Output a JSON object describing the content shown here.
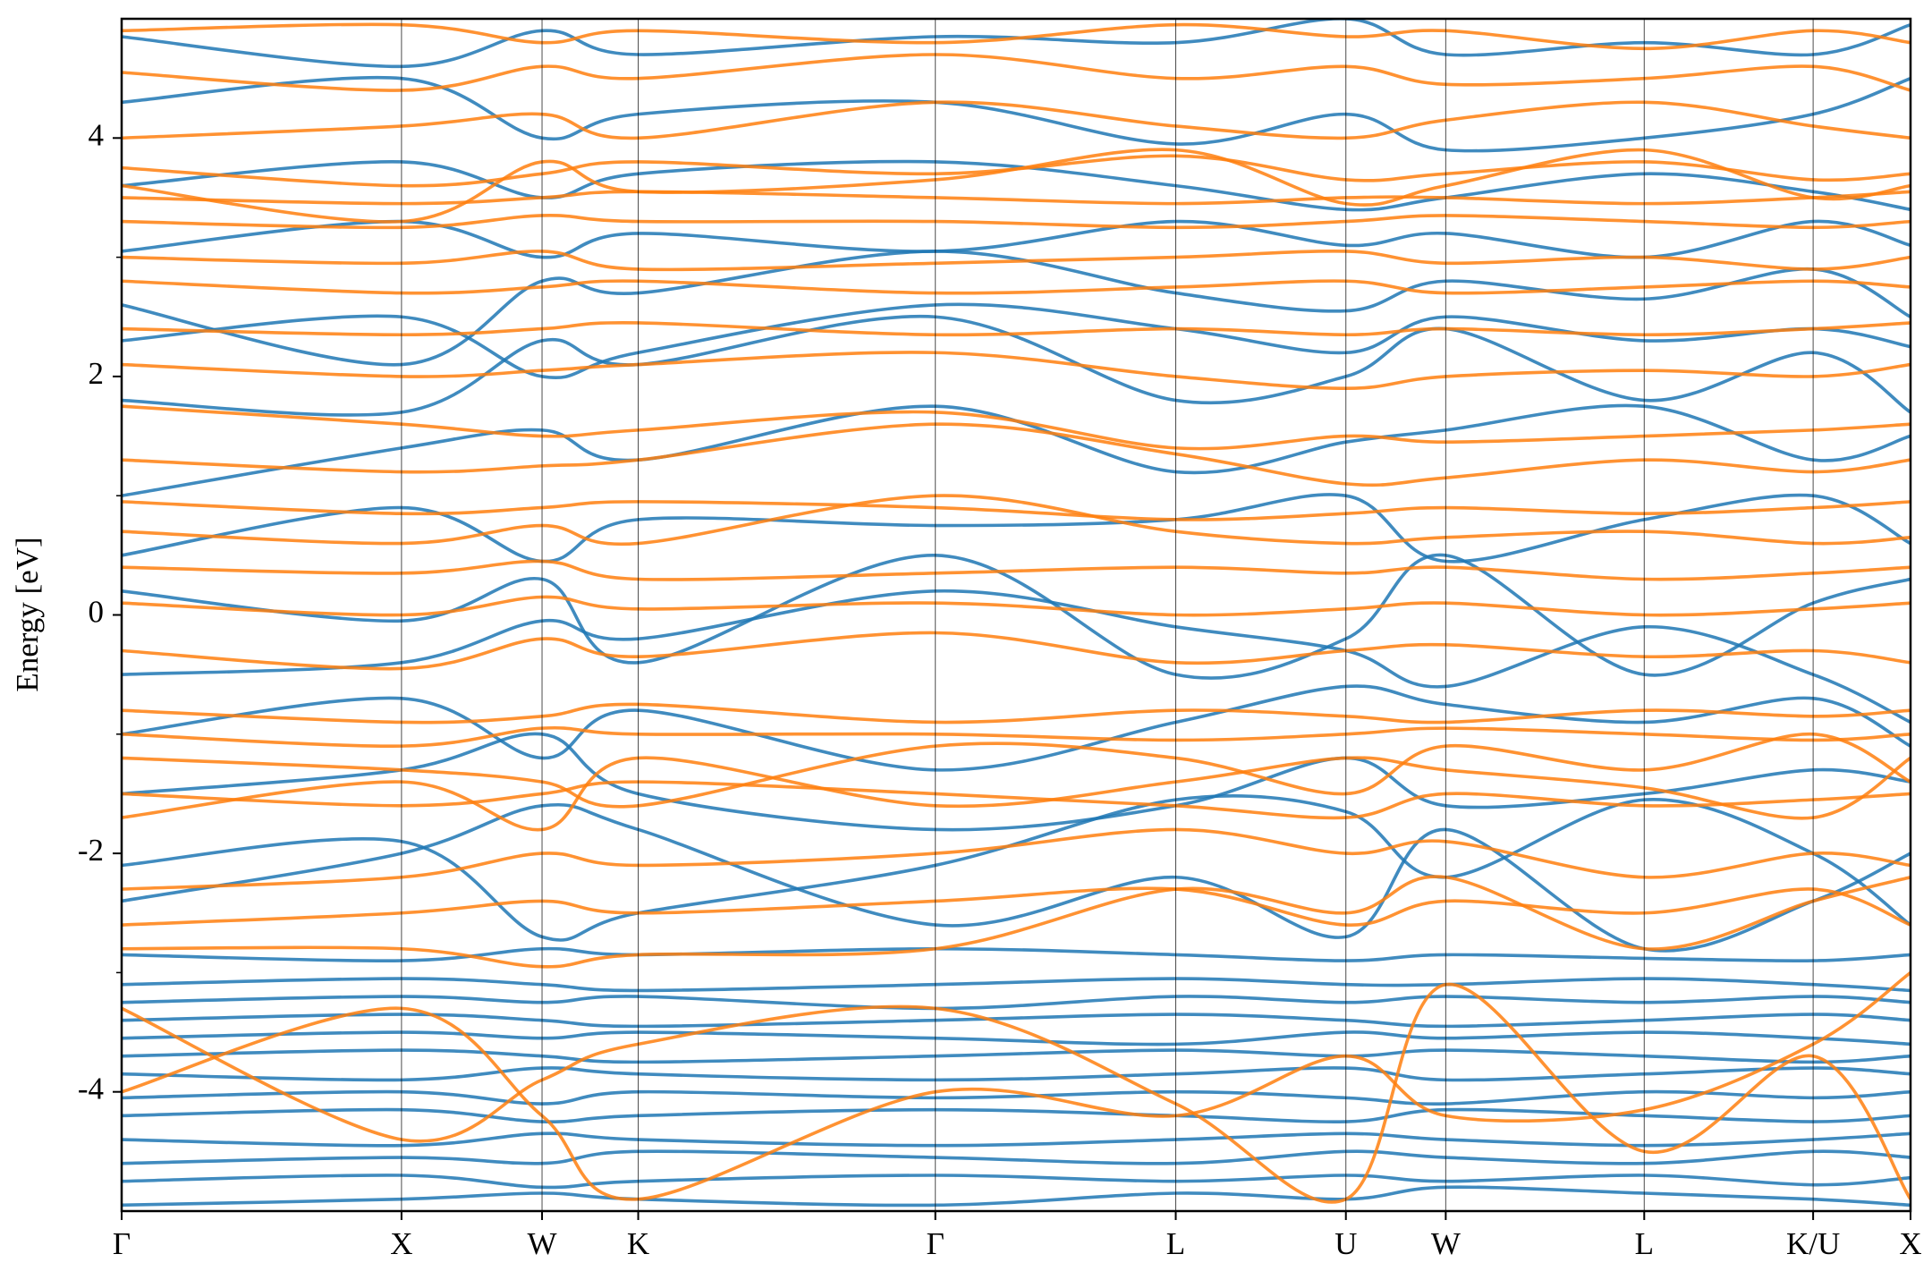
{
  "chart_data": {
    "type": "bands",
    "ylabel": "Energy [eV]",
    "x": [
      0,
      0.227,
      0.341,
      0.419,
      0.66,
      0.855,
      0.993,
      1.074,
      1.235,
      1.372,
      1.451
    ],
    "xlim": [
      0,
      1.451
    ],
    "xticks": [
      {
        "value": 0,
        "label": "Γ"
      },
      {
        "value": 0.227,
        "label": "X"
      },
      {
        "value": 0.341,
        "label": "W"
      },
      {
        "value": 0.419,
        "label": "K"
      },
      {
        "value": 0.66,
        "label": "Γ"
      },
      {
        "value": 0.855,
        "label": "L"
      },
      {
        "value": 0.993,
        "label": "U"
      },
      {
        "value": 1.074,
        "label": "W"
      },
      {
        "value": 1.235,
        "label": "L"
      },
      {
        "value": 1.372,
        "label": "K/U"
      },
      {
        "value": 1.451,
        "label": "X"
      }
    ],
    "ylim": [
      -5,
      5
    ],
    "yticks": [
      -4,
      -2,
      0,
      2,
      4
    ],
    "yminorticks": [
      -3,
      -1,
      1,
      3
    ],
    "series": [
      {
        "color": "#1f77b4",
        "bands": [
          [
            -4.95,
            -4.9,
            -4.85,
            -4.9,
            -4.95,
            -4.85,
            -4.9,
            -4.8,
            -4.85,
            -4.9,
            -4.95
          ],
          [
            -4.75,
            -4.7,
            -4.8,
            -4.75,
            -4.7,
            -4.75,
            -4.7,
            -4.75,
            -4.7,
            -4.78,
            -4.72
          ],
          [
            -4.6,
            -4.55,
            -4.6,
            -4.5,
            -4.55,
            -4.6,
            -4.5,
            -4.55,
            -4.6,
            -4.5,
            -4.55
          ],
          [
            -4.4,
            -4.45,
            -4.35,
            -4.4,
            -4.45,
            -4.4,
            -4.35,
            -4.4,
            -4.45,
            -4.4,
            -4.35
          ],
          [
            -4.2,
            -4.15,
            -4.25,
            -4.2,
            -4.15,
            -4.2,
            -4.25,
            -4.15,
            -4.2,
            -4.25,
            -4.2
          ],
          [
            -4.05,
            -4.0,
            -4.1,
            -4.0,
            -4.05,
            -4.0,
            -4.05,
            -4.1,
            -4.0,
            -4.05,
            -4.0
          ],
          [
            -3.85,
            -3.9,
            -3.8,
            -3.85,
            -3.9,
            -3.85,
            -3.8,
            -3.9,
            -3.85,
            -3.8,
            -3.85
          ],
          [
            -3.7,
            -3.65,
            -3.7,
            -3.75,
            -3.7,
            -3.65,
            -3.7,
            -3.65,
            -3.7,
            -3.75,
            -3.7
          ],
          [
            -3.55,
            -3.5,
            -3.55,
            -3.5,
            -3.55,
            -3.6,
            -3.5,
            -3.55,
            -3.5,
            -3.55,
            -3.6
          ],
          [
            -3.4,
            -3.35,
            -3.4,
            -3.45,
            -3.4,
            -3.35,
            -3.4,
            -3.45,
            -3.4,
            -3.35,
            -3.4
          ],
          [
            -3.25,
            -3.2,
            -3.25,
            -3.2,
            -3.3,
            -3.2,
            -3.25,
            -3.2,
            -3.25,
            -3.2,
            -3.25
          ],
          [
            -3.1,
            -3.05,
            -3.1,
            -3.15,
            -3.1,
            -3.05,
            -3.1,
            -3.1,
            -3.05,
            -3.1,
            -3.15
          ],
          [
            -2.85,
            -2.9,
            -2.8,
            -2.85,
            -2.8,
            -2.85,
            -2.9,
            -2.85,
            -2.88,
            -2.9,
            -2.85
          ],
          [
            -2.1,
            -1.9,
            -2.7,
            -2.5,
            -2.1,
            -1.55,
            -1.65,
            -2.2,
            -1.55,
            -2.0,
            -2.6
          ],
          [
            -2.4,
            -2.0,
            -1.6,
            -1.8,
            -2.6,
            -2.2,
            -2.7,
            -1.8,
            -2.8,
            -2.4,
            -2.0
          ],
          [
            -0.5,
            -0.4,
            -0.05,
            -0.2,
            0.2,
            -0.1,
            -0.3,
            -0.6,
            -0.1,
            -0.5,
            -0.9
          ],
          [
            0.2,
            -0.05,
            0.3,
            -0.4,
            0.5,
            -0.5,
            -0.2,
            0.5,
            -0.5,
            0.1,
            0.3
          ],
          [
            0.5,
            0.9,
            0.45,
            0.8,
            0.75,
            0.8,
            1.0,
            0.45,
            0.8,
            1.0,
            0.6
          ],
          [
            1.0,
            1.4,
            1.55,
            1.3,
            1.75,
            1.2,
            1.45,
            1.55,
            1.75,
            1.3,
            1.5
          ],
          [
            1.8,
            1.7,
            2.3,
            2.1,
            2.5,
            1.8,
            2.0,
            2.4,
            1.8,
            2.2,
            1.7
          ],
          [
            2.6,
            2.1,
            2.8,
            2.7,
            3.05,
            2.7,
            2.55,
            2.8,
            2.65,
            2.9,
            2.5
          ],
          [
            3.05,
            3.3,
            3.0,
            3.2,
            3.05,
            3.3,
            3.1,
            3.2,
            3.0,
            3.3,
            3.1
          ],
          [
            4.3,
            4.5,
            4.0,
            4.2,
            4.3,
            3.95,
            4.2,
            3.9,
            4.0,
            4.2,
            4.5
          ],
          [
            4.85,
            4.6,
            4.9,
            4.7,
            4.85,
            4.8,
            5.0,
            4.7,
            4.8,
            4.7,
            4.95
          ],
          [
            -1.0,
            -0.7,
            -1.2,
            -0.8,
            -1.3,
            -0.9,
            -0.6,
            -0.75,
            -0.9,
            -0.7,
            -1.1
          ],
          [
            -1.5,
            -1.3,
            -1.0,
            -1.5,
            -1.8,
            -1.6,
            -1.2,
            -1.6,
            -1.5,
            -1.3,
            -1.4
          ],
          [
            3.6,
            3.8,
            3.5,
            3.7,
            3.8,
            3.6,
            3.4,
            3.5,
            3.7,
            3.55,
            3.4
          ],
          [
            2.3,
            2.5,
            2.0,
            2.2,
            2.6,
            2.4,
            2.2,
            2.5,
            2.3,
            2.4,
            2.25
          ]
        ]
      },
      {
        "color": "#ff7f0e",
        "bands": [
          [
            -4.0,
            -3.3,
            -4.2,
            -4.9,
            -4.0,
            -4.2,
            -3.7,
            -4.2,
            -4.15,
            -3.6,
            -3.0
          ],
          [
            -3.3,
            -4.4,
            -3.9,
            -3.6,
            -3.3,
            -4.1,
            -4.9,
            -3.1,
            -4.5,
            -3.7,
            -4.9
          ],
          [
            -2.8,
            -2.8,
            -2.95,
            -2.85,
            -2.8,
            -2.3,
            -2.5,
            -2.2,
            -2.8,
            -2.4,
            -2.2
          ],
          [
            -2.3,
            -2.2,
            -2.0,
            -2.1,
            -2.0,
            -1.8,
            -2.0,
            -1.9,
            -2.2,
            -2.0,
            -2.1
          ],
          [
            -1.5,
            -1.6,
            -1.5,
            -1.4,
            -1.5,
            -1.6,
            -1.7,
            -1.5,
            -1.6,
            -1.55,
            -1.5
          ],
          [
            -1.0,
            -1.1,
            -0.95,
            -1.0,
            -1.0,
            -1.05,
            -1.0,
            -0.95,
            -1.0,
            -1.05,
            -1.0
          ],
          [
            -0.8,
            -0.9,
            -0.85,
            -0.75,
            -0.9,
            -0.8,
            -0.85,
            -0.9,
            -0.8,
            -0.85,
            -0.8
          ],
          [
            -0.3,
            -0.45,
            -0.2,
            -0.35,
            -0.15,
            -0.4,
            -0.3,
            -0.25,
            -0.35,
            -0.3,
            -0.4
          ],
          [
            0.1,
            0.0,
            0.15,
            0.05,
            0.1,
            0.0,
            0.05,
            0.1,
            0.0,
            0.05,
            0.1
          ],
          [
            0.4,
            0.35,
            0.45,
            0.3,
            0.35,
            0.4,
            0.35,
            0.4,
            0.3,
            0.35,
            0.4
          ],
          [
            0.95,
            0.85,
            0.9,
            0.95,
            0.9,
            0.8,
            0.85,
            0.9,
            0.85,
            0.9,
            0.95
          ],
          [
            1.3,
            1.2,
            1.25,
            1.3,
            1.6,
            1.35,
            1.1,
            1.15,
            1.3,
            1.2,
            1.3
          ],
          [
            1.75,
            1.6,
            1.5,
            1.55,
            1.7,
            1.4,
            1.5,
            1.45,
            1.5,
            1.55,
            1.6
          ],
          [
            2.1,
            2.0,
            2.05,
            2.1,
            2.2,
            2.0,
            1.9,
            2.0,
            2.05,
            2.0,
            2.1
          ],
          [
            2.4,
            2.35,
            2.4,
            2.45,
            2.35,
            2.4,
            2.35,
            2.4,
            2.35,
            2.4,
            2.45
          ],
          [
            2.8,
            2.7,
            2.75,
            2.8,
            2.7,
            2.75,
            2.8,
            2.7,
            2.75,
            2.8,
            2.75
          ],
          [
            3.0,
            2.95,
            3.05,
            2.9,
            2.95,
            3.0,
            3.05,
            2.95,
            3.0,
            2.9,
            3.0
          ],
          [
            3.3,
            3.25,
            3.35,
            3.3,
            3.3,
            3.25,
            3.3,
            3.35,
            3.3,
            3.25,
            3.3
          ],
          [
            3.5,
            3.45,
            3.5,
            3.55,
            3.5,
            3.45,
            3.5,
            3.5,
            3.45,
            3.5,
            3.55
          ],
          [
            3.75,
            3.6,
            3.7,
            3.8,
            3.7,
            3.85,
            3.65,
            3.7,
            3.8,
            3.65,
            3.7
          ],
          [
            4.0,
            4.1,
            4.2,
            4.0,
            4.3,
            4.1,
            4.0,
            4.15,
            4.3,
            4.1,
            4.0
          ],
          [
            4.55,
            4.4,
            4.6,
            4.5,
            4.7,
            4.5,
            4.6,
            4.45,
            4.5,
            4.6,
            4.4
          ],
          [
            4.9,
            4.95,
            4.8,
            4.9,
            4.8,
            4.95,
            4.85,
            4.9,
            4.75,
            4.9,
            4.8
          ],
          [
            -1.7,
            -1.4,
            -1.8,
            -1.2,
            -1.6,
            -1.4,
            -1.2,
            -1.3,
            -1.45,
            -1.7,
            -1.2
          ],
          [
            -1.2,
            -1.3,
            -1.4,
            -1.6,
            -1.1,
            -1.2,
            -1.5,
            -1.1,
            -1.3,
            -1.0,
            -1.4
          ],
          [
            0.7,
            0.6,
            0.75,
            0.6,
            1.0,
            0.7,
            0.6,
            0.65,
            0.7,
            0.6,
            0.65
          ],
          [
            -2.6,
            -2.5,
            -2.4,
            -2.5,
            -2.4,
            -2.3,
            -2.6,
            -2.4,
            -2.5,
            -2.3,
            -2.6
          ],
          [
            3.6,
            3.3,
            3.8,
            3.55,
            3.65,
            3.9,
            3.45,
            3.6,
            3.9,
            3.5,
            3.6
          ]
        ]
      }
    ]
  }
}
